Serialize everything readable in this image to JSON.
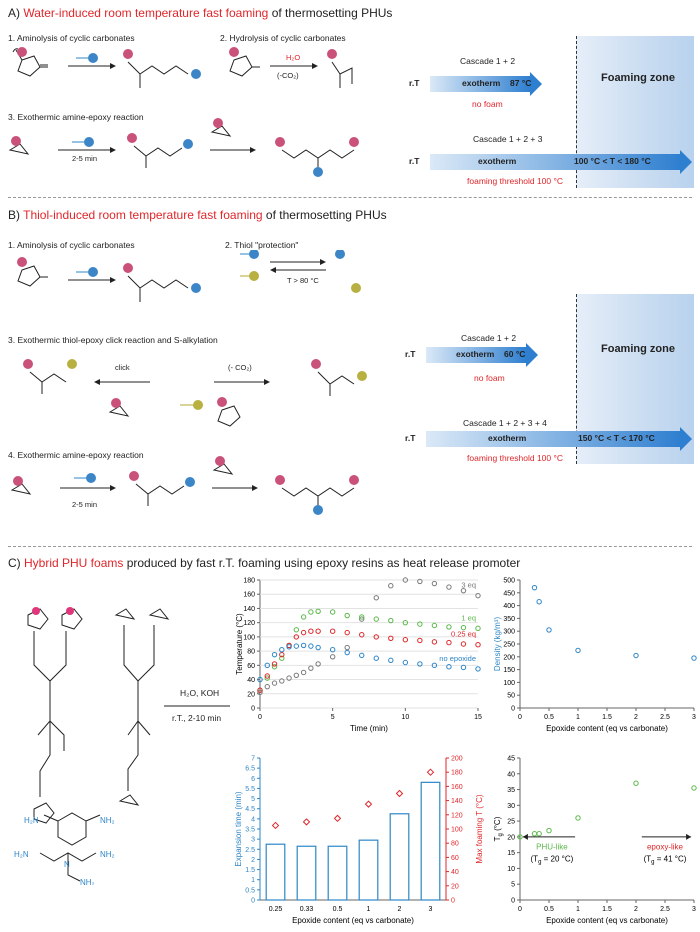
{
  "sectionA": {
    "title_a": "A) ",
    "title_b": "Water-induced",
    "title_c": " ",
    "title_d": "room temperature fast foaming",
    "title_e": " of thermosetting PHUs",
    "step1": "1. Aminolysis of cyclic carbonates",
    "step2": "2. Hydrolysis of cyclic carbonates",
    "step3": "3. Exothermic amine-epoxy reaction",
    "h2o": "H₂O",
    "co2": "(-CO₂)",
    "time": "2-5 min",
    "cascade1": "Cascade 1 + 2",
    "cascade2": "Cascade 1 + 2 + 3",
    "rt": "r.T",
    "exotherm": "exotherm",
    "temp1": "87 °C",
    "nofoam": "no foam",
    "foamzone": "Foaming zone",
    "temp2": "100 °C < T < 180 °C",
    "threshold": "foaming threshold",
    "threshold_val": "100 °C"
  },
  "sectionB": {
    "title_a": "B) ",
    "title_b": "Thiol-induced",
    "title_c": "  ",
    "title_d": "room temperature fast foaming",
    "title_e": " of thermosetting PHUs",
    "step1": "1. Aminolysis of cyclic carbonates",
    "step2": "2. Thiol \"protection\"",
    "step3": "3. Exothermic thiol-epoxy click reaction and S-alkylation",
    "step4": "4. Exothermic amine-epoxy reaction",
    "cond": "T > 80 °C",
    "click": "click",
    "co2": "(- CO₂)",
    "time": "2-5 min",
    "cascade1": "Cascade 1 + 2",
    "cascade2": "Cascade 1 + 2 + 3 + 4",
    "rt": "r.T",
    "exotherm": "exotherm",
    "temp1": "60 °C",
    "nofoam": "no foam",
    "foamzone": "Foaming zone",
    "temp2": "150 °C < T < 170 °C",
    "threshold": "foaming threshold",
    "threshold_val": "100 °C"
  },
  "sectionC": {
    "title_a": "C) ",
    "title_b": "Hybrid PHU foams",
    "title_c": " produced by fast r.T.  foaming using epoxy resins as heat release promoter",
    "reagents": "H₂O, KOH",
    "conditions": "r.T., 2-10 min"
  },
  "chart_data": [
    {
      "type": "scatter",
      "xlabel": "Time (min)",
      "ylabel": "Temperature (°C)",
      "xlim": [
        0,
        15
      ],
      "ylim": [
        0,
        180
      ],
      "xticks": [
        "0",
        "5",
        "10",
        "15"
      ],
      "yticks": [
        "0",
        "20",
        "40",
        "60",
        "80",
        "100",
        "120",
        "140",
        "160",
        "180"
      ],
      "series": [
        {
          "name": "3 eq",
          "color": "#7a7a7a",
          "points": [
            [
              0,
              22
            ],
            [
              0.5,
              30
            ],
            [
              1,
              35
            ],
            [
              1.5,
              38
            ],
            [
              2,
              42
            ],
            [
              2.5,
              46
            ],
            [
              3,
              50
            ],
            [
              3.5,
              56
            ],
            [
              4,
              62
            ],
            [
              5,
              72
            ],
            [
              6,
              85
            ],
            [
              7,
              125
            ],
            [
              8,
              155
            ],
            [
              9,
              172
            ],
            [
              10,
              180
            ],
            [
              11,
              178
            ],
            [
              12,
              175
            ],
            [
              13,
              170
            ],
            [
              14,
              165
            ],
            [
              15,
              158
            ]
          ]
        },
        {
          "name": "1 eq",
          "color": "#5bb84a",
          "points": [
            [
              0,
              25
            ],
            [
              0.5,
              42
            ],
            [
              1,
              58
            ],
            [
              1.5,
              70
            ],
            [
              2,
              88
            ],
            [
              2.5,
              110
            ],
            [
              3,
              128
            ],
            [
              3.5,
              135
            ],
            [
              4,
              136
            ],
            [
              5,
              135
            ],
            [
              6,
              130
            ],
            [
              7,
              128
            ],
            [
              8,
              125
            ],
            [
              9,
              123
            ],
            [
              10,
              120
            ],
            [
              11,
              118
            ],
            [
              12,
              116
            ],
            [
              13,
              114
            ],
            [
              14,
              113
            ],
            [
              15,
              112
            ]
          ]
        },
        {
          "name": "0.25 eq",
          "color": "#e0262a",
          "points": [
            [
              0,
              25
            ],
            [
              0.5,
              45
            ],
            [
              1,
              62
            ],
            [
              1.5,
              75
            ],
            [
              2,
              88
            ],
            [
              2.5,
              100
            ],
            [
              3,
              106
            ],
            [
              3.5,
              108
            ],
            [
              4,
              108
            ],
            [
              5,
              108
            ],
            [
              6,
              106
            ],
            [
              7,
              103
            ],
            [
              8,
              100
            ],
            [
              9,
              98
            ],
            [
              10,
              96
            ],
            [
              11,
              95
            ],
            [
              12,
              93
            ],
            [
              13,
              92
            ],
            [
              14,
              90
            ],
            [
              15,
              89
            ]
          ]
        },
        {
          "name": "no epoxide",
          "color": "#2d86c8",
          "points": [
            [
              0,
              40
            ],
            [
              0.5,
              60
            ],
            [
              1,
              75
            ],
            [
              1.5,
              82
            ],
            [
              2,
              86
            ],
            [
              2.5,
              87
            ],
            [
              3,
              88
            ],
            [
              3.5,
              87
            ],
            [
              4,
              85
            ],
            [
              5,
              82
            ],
            [
              6,
              78
            ],
            [
              7,
              74
            ],
            [
              8,
              70
            ],
            [
              9,
              67
            ],
            [
              10,
              64
            ],
            [
              11,
              62
            ],
            [
              12,
              60
            ],
            [
              13,
              58
            ],
            [
              14,
              57
            ],
            [
              15,
              55
            ]
          ]
        }
      ]
    },
    {
      "type": "scatter",
      "xlabel": "Epoxide content (eq vs carbonate)",
      "ylabel": "Density (kg/m³)",
      "xlim": [
        0,
        3
      ],
      "ylim": [
        0,
        500
      ],
      "xticks": [
        "0",
        "0.5",
        "1",
        "1.5",
        "2",
        "2.5",
        "3"
      ],
      "yticks": [
        "0",
        "50",
        "100",
        "150",
        "200",
        "250",
        "300",
        "350",
        "400",
        "450",
        "500"
      ],
      "x": [
        0.25,
        0.33,
        0.5,
        1,
        2,
        3
      ],
      "y": [
        470,
        415,
        305,
        225,
        205,
        195
      ],
      "color": "#2d86c8"
    },
    {
      "type": "bar",
      "xlabel": "Epoxide content (eq vs carbonate)",
      "ylabel": "Expansion time (min)",
      "ylabel2": "Max foaming T (°C)",
      "categories": [
        "0.25",
        "0.33",
        "0.5",
        "1",
        "2",
        "3"
      ],
      "values": [
        2.75,
        2.65,
        2.65,
        2.95,
        4.25,
        5.8
      ],
      "values2": [
        105,
        110,
        115,
        135,
        150,
        180
      ],
      "ylim": [
        0,
        7
      ],
      "ylim2": [
        0,
        200
      ],
      "yticks": [
        "0",
        "0.5",
        "1",
        "1.5",
        "2",
        "2.5",
        "3",
        "3.5",
        "4",
        "4.5",
        "5",
        "5.5",
        "6",
        "6.5",
        "7"
      ],
      "yticks2": [
        "0",
        "20",
        "40",
        "60",
        "80",
        "100",
        "120",
        "140",
        "160",
        "180",
        "200"
      ]
    },
    {
      "type": "scatter",
      "xlabel": "Epoxide content (eq vs carbonate)",
      "ylabel": "T",
      "ylabel_sub": "g",
      "ylabel_unit": " (°C)",
      "xlim": [
        0,
        3
      ],
      "ylim": [
        0,
        45
      ],
      "xticks": [
        "0",
        "0.5",
        "1",
        "1.5",
        "2",
        "2.5",
        "3"
      ],
      "yticks": [
        "0",
        "5",
        "10",
        "15",
        "20",
        "25",
        "30",
        "35",
        "40",
        "45"
      ],
      "x": [
        0,
        0.25,
        0.33,
        0.5,
        1,
        2,
        3
      ],
      "y": [
        20,
        21,
        21,
        22,
        26,
        37,
        35.5
      ],
      "color": "#5bb84a",
      "ann_left_a": "PHU-like",
      "ann_left_b": "(T",
      "ann_left_c": "g",
      "ann_left_d": " = 20 °C)",
      "ann_right_a": "epoxy-like",
      "ann_right_b": "(T",
      "ann_right_c": "g",
      "ann_right_d": " = 41 °C)"
    }
  ]
}
